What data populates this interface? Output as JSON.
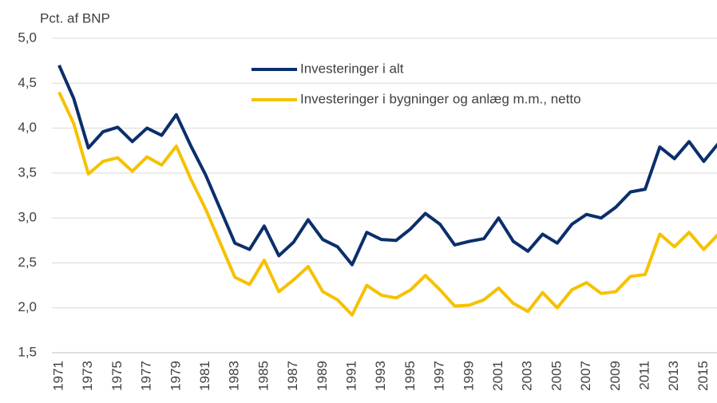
{
  "chart_data": {
    "type": "line",
    "y_axis_label": "Pct. af BNP",
    "categories": [
      "1971",
      null,
      "1973",
      null,
      "1975",
      null,
      "1977",
      null,
      "1979",
      null,
      "1981",
      null,
      "1983",
      null,
      "1985",
      null,
      "1987",
      null,
      "1989",
      null,
      "1991",
      null,
      "1993",
      null,
      "1995",
      null,
      "1997",
      null,
      "1999",
      null,
      "2001",
      null,
      "2003",
      null,
      "2005",
      null,
      "2007",
      null,
      "2009",
      null,
      "2011",
      null,
      "2013",
      null,
      "2015",
      null
    ],
    "series": [
      {
        "name": "Investeringer i alt",
        "color": "#0b2f6b",
        "values": [
          4.7,
          4.33,
          3.78,
          3.96,
          4.01,
          3.85,
          4.0,
          3.92,
          4.15,
          3.8,
          3.48,
          3.1,
          2.72,
          2.65,
          2.91,
          2.58,
          2.73,
          2.98,
          2.76,
          2.68,
          2.48,
          2.84,
          2.76,
          2.75,
          2.88,
          3.05,
          2.93,
          2.7,
          2.74,
          2.77,
          3.0,
          2.74,
          2.63,
          2.82,
          2.72,
          2.93,
          3.04,
          3.0,
          3.12,
          3.29,
          3.32,
          3.79,
          3.66,
          3.85,
          3.63,
          3.83
        ]
      },
      {
        "name": "Investeringer i bygninger og anlæg m.m., netto",
        "color": "#f6c100",
        "values": [
          4.4,
          4.05,
          3.49,
          3.63,
          3.67,
          3.52,
          3.68,
          3.59,
          3.8,
          3.43,
          3.1,
          2.72,
          2.34,
          2.26,
          2.53,
          2.18,
          2.31,
          2.46,
          2.18,
          2.09,
          1.92,
          2.25,
          2.14,
          2.11,
          2.2,
          2.36,
          2.2,
          2.02,
          2.03,
          2.09,
          2.22,
          2.05,
          1.96,
          2.17,
          2.0,
          2.2,
          2.28,
          2.16,
          2.18,
          2.35,
          2.37,
          2.82,
          2.68,
          2.84,
          2.65,
          2.82
        ]
      }
    ],
    "ylim": [
      1.5,
      5.0
    ],
    "yticks": [
      {
        "value": 1.5,
        "label": "1,5"
      },
      {
        "value": 2.0,
        "label": "2,0"
      },
      {
        "value": 2.5,
        "label": "2,5"
      },
      {
        "value": 3.0,
        "label": "3,0"
      },
      {
        "value": 3.5,
        "label": "3,5"
      },
      {
        "value": 4.0,
        "label": "4,0"
      },
      {
        "value": 4.5,
        "label": "4,5"
      },
      {
        "value": 5.0,
        "label": "5,0"
      }
    ],
    "grid": true
  }
}
